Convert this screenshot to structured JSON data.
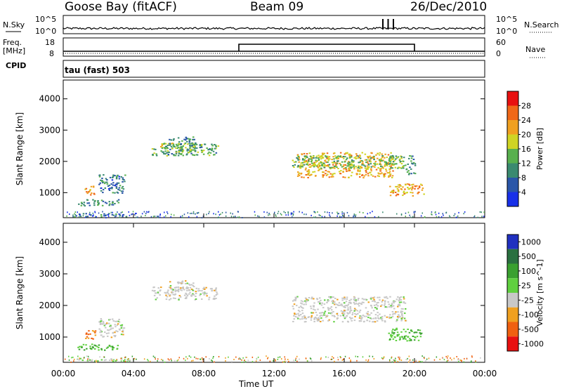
{
  "header": {
    "station": "Goose Bay (fitACF)",
    "beam": "Beam 09",
    "date": "26/Dec/2010"
  },
  "noise_panel": {
    "left_label": "N.Sky",
    "right_label": "N.Search",
    "left_ticks": [
      "10^5",
      "10^0"
    ],
    "right_ticks": [
      "10^5",
      "10^0"
    ]
  },
  "freq_panel": {
    "left_label_line1": "Freq.",
    "left_label_line2": "[MHz]",
    "left_ticks": [
      "18",
      "8"
    ],
    "right_label": "Nave",
    "right_ticks": [
      "60",
      "0"
    ],
    "cpid_label": "CPID"
  },
  "mode_text": "tau (fast) 503",
  "x_axis": {
    "ticks": [
      "00:00",
      "04:00",
      "08:00",
      "12:00",
      "16:00",
      "20:00",
      "00:00"
    ],
    "tick_hours": [
      0,
      4,
      8,
      12,
      16,
      20,
      24
    ],
    "title": "Time UT"
  },
  "chart_data": [
    {
      "type": "heatmap",
      "title": "",
      "xlabel": "",
      "ylabel": "Slant Range [km]",
      "xlim": [
        0,
        24
      ],
      "ylim": [
        200,
        4600
      ],
      "y_ticks": [
        "4000",
        "3000",
        "2000",
        "1000"
      ],
      "y_tick_values": [
        4000,
        3000,
        2000,
        1000
      ],
      "colorbar_label": "Power [dB]",
      "colorbar_ticks": [
        "28",
        "24",
        "20",
        "16",
        "12",
        "8",
        "4"
      ],
      "colorbar_tick_values": [
        28,
        24,
        20,
        16,
        12,
        8,
        4
      ],
      "colorbar_range": [
        0,
        32
      ],
      "colors": [
        "#1830e8",
        "#2a56a8",
        "#3a8a70",
        "#58b04e",
        "#cfd424",
        "#f0a020",
        "#f06818",
        "#e81010"
      ],
      "regions": [
        {
          "t": [
            0.8,
            3.8
          ],
          "r": [
            250,
            350
          ],
          "v": 8
        },
        {
          "t": [
            0.8,
            3.2
          ],
          "r": [
            600,
            800
          ],
          "v": 10
        },
        {
          "t": [
            1.2,
            1.8
          ],
          "r": [
            950,
            1250
          ],
          "v": 22
        },
        {
          "t": [
            2.0,
            3.5
          ],
          "r": [
            1000,
            1600
          ],
          "v": 8
        },
        {
          "t": [
            5.0,
            8.8
          ],
          "r": [
            2200,
            2600
          ],
          "v": 12
        },
        {
          "t": [
            5.5,
            8.0
          ],
          "r": [
            2300,
            2600
          ],
          "v": 16
        },
        {
          "t": [
            6.0,
            7.5
          ],
          "r": [
            2500,
            2800
          ],
          "v": 9
        },
        {
          "t": [
            13.3,
            18.8
          ],
          "r": [
            1500,
            2300
          ],
          "v": 21
        },
        {
          "t": [
            13.0,
            19.5
          ],
          "r": [
            1800,
            2200
          ],
          "v": 14
        },
        {
          "t": [
            18.5,
            20.5
          ],
          "r": [
            900,
            1300
          ],
          "v": 22
        },
        {
          "t": [
            19.5,
            20.0
          ],
          "r": [
            1600,
            2200
          ],
          "v": 10
        }
      ]
    },
    {
      "type": "heatmap",
      "title": "",
      "xlabel": "Time UT",
      "ylabel": "Slant Range [km]",
      "xlim": [
        0,
        24
      ],
      "ylim": [
        200,
        4600
      ],
      "y_ticks": [
        "4000",
        "3000",
        "2000",
        "1000"
      ],
      "y_tick_values": [
        4000,
        3000,
        2000,
        1000
      ],
      "colorbar_label": "Velocity [m s^-1]",
      "colorbar_ticks": [
        "1000",
        "500",
        "100",
        "25",
        "-25",
        "-100",
        "-500",
        "-1000"
      ],
      "colors": [
        "#2030c0",
        "#2a7040",
        "#3aa030",
        "#60d040",
        "#c8c8c8",
        "#f0a020",
        "#f06010",
        "#e81010"
      ],
      "regions": [
        {
          "t": [
            0.8,
            3.8
          ],
          "r": [
            250,
            350
          ],
          "v": 25
        },
        {
          "t": [
            0.8,
            3.2
          ],
          "r": [
            600,
            800
          ],
          "v": 100
        },
        {
          "t": [
            1.2,
            1.8
          ],
          "r": [
            950,
            1250
          ],
          "v": -100
        },
        {
          "t": [
            2.0,
            3.5
          ],
          "r": [
            1000,
            1600
          ],
          "v": 0
        },
        {
          "t": [
            5.0,
            8.8
          ],
          "r": [
            2200,
            2600
          ],
          "v": 0
        },
        {
          "t": [
            6.0,
            7.5
          ],
          "r": [
            2500,
            2800
          ],
          "v": 0
        },
        {
          "t": [
            13.0,
            19.5
          ],
          "r": [
            1500,
            2300
          ],
          "v": 0
        },
        {
          "t": [
            18.5,
            20.5
          ],
          "r": [
            900,
            1300
          ],
          "v": 100
        }
      ]
    }
  ],
  "noise_data": {
    "sky_level": 0.15,
    "search_spikes_hours": [
      18.2,
      18.5,
      18.8
    ]
  },
  "freq_data": {
    "freq_mhz": [
      [
        0,
        10
      ],
      [
        10,
        20
      ]
    ],
    "nave_steps": [
      [
        0,
        10,
        0
      ],
      [
        10,
        20,
        1
      ],
      [
        20,
        24,
        0
      ]
    ]
  }
}
